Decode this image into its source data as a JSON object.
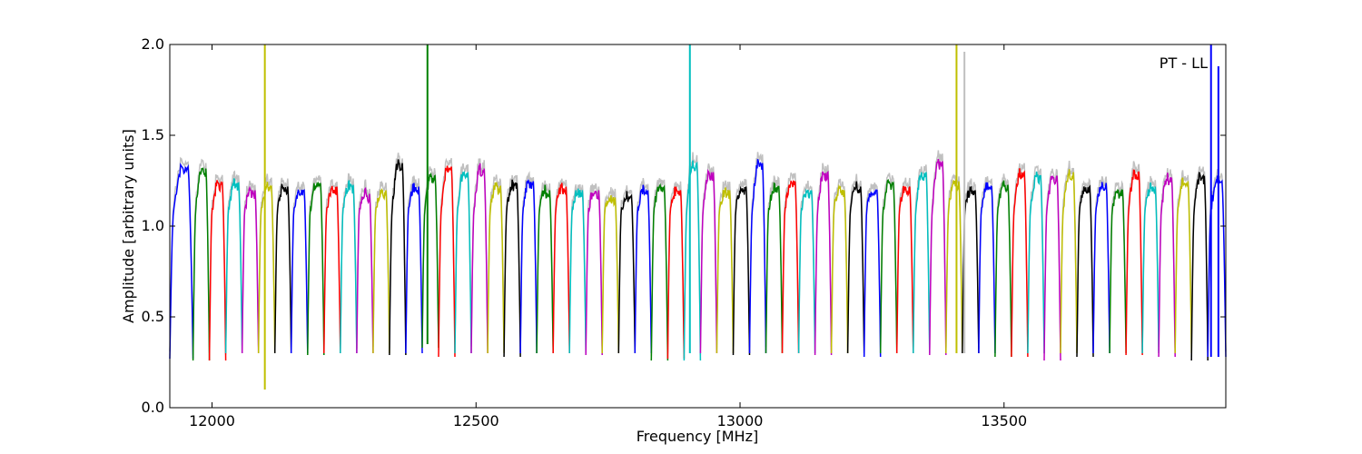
{
  "chart_data": {
    "type": "line",
    "title": "",
    "annotation": "PT - LL",
    "xlabel": "Frequency [MHz]",
    "ylabel": "Amplitude [arbitrary units]",
    "xlim": [
      11920,
      13920
    ],
    "ylim": [
      0,
      2.0
    ],
    "xticks": [
      12000,
      12500,
      13000,
      13500
    ],
    "yticks": [
      0.0,
      0.5,
      1.0,
      1.5,
      2.0
    ],
    "xtick_labels": [
      "12000",
      "12500",
      "13000",
      "13500"
    ],
    "ytick_labels": [
      "0.0",
      "0.5",
      "1.0",
      "1.5",
      "2.0"
    ],
    "grid": false,
    "background_trace_color": "#c0c0c0",
    "channel_colors": [
      "#0000ff",
      "#008000",
      "#ff0000",
      "#00bfbf",
      "#bf00bf",
      "#bfbf00",
      "#000000"
    ],
    "channel_starts_mhz": [
      11920,
      11964,
      11995,
      12026,
      12057,
      12088,
      12119,
      12150,
      12181,
      12212,
      12243,
      12274,
      12305,
      12336,
      12367,
      12398,
      12429,
      12460,
      12491,
      12522,
      12553,
      12584,
      12615,
      12646,
      12677,
      12708,
      12739,
      12770,
      12801,
      12832,
      12863,
      12894,
      12925,
      12956,
      12987,
      13018,
      13049,
      13080,
      13111,
      13142,
      13173,
      13204,
      13235,
      13266,
      13297,
      13328,
      13359,
      13390,
      13421,
      13452,
      13483,
      13514,
      13545,
      13576,
      13607,
      13638,
      13669,
      13700,
      13731,
      13762,
      13793,
      13824,
      13855,
      13886
    ],
    "channel_peaks": [
      1.33,
      1.32,
      1.24,
      1.24,
      1.2,
      1.22,
      1.22,
      1.2,
      1.24,
      1.22,
      1.23,
      1.18,
      1.2,
      1.35,
      1.22,
      1.28,
      1.33,
      1.3,
      1.32,
      1.22,
      1.24,
      1.25,
      1.2,
      1.22,
      1.2,
      1.2,
      1.16,
      1.17,
      1.2,
      1.22,
      1.2,
      1.35,
      1.3,
      1.2,
      1.22,
      1.35,
      1.22,
      1.25,
      1.2,
      1.3,
      1.2,
      1.22,
      1.2,
      1.24,
      1.22,
      1.3,
      1.36,
      1.25,
      1.2,
      1.22,
      1.23,
      1.3,
      1.28,
      1.28,
      1.3,
      1.22,
      1.24,
      1.2,
      1.3,
      1.22,
      1.27,
      1.25,
      1.28,
      1.25
    ],
    "channel_dips": [
      0.27,
      0.26,
      0.26,
      0.3,
      0.3,
      0.3,
      0.3,
      0.3,
      0.29,
      0.3,
      0.3,
      0.3,
      0.3,
      0.29,
      0.3,
      0.33,
      0.28,
      0.3,
      0.3,
      0.3,
      0.28,
      0.3,
      0.3,
      0.3,
      0.3,
      0.29,
      0.3,
      0.3,
      0.3,
      0.26,
      0.27,
      0.26,
      0.3,
      0.3,
      0.29,
      0.3,
      0.3,
      0.3,
      0.3,
      0.29,
      0.3,
      0.3,
      0.28,
      0.3,
      0.3,
      0.3,
      0.29,
      0.3,
      0.3,
      0.3,
      0.28,
      0.28,
      0.3,
      0.26,
      0.3,
      0.28,
      0.3,
      0.3,
      0.29,
      0.3,
      0.28,
      0.3,
      0.26,
      0.28
    ],
    "spikes": [
      {
        "x_mhz": 12100,
        "y_top": 2.0,
        "y_bottom": 0.1,
        "color": "#bfbf00"
      },
      {
        "x_mhz": 12408,
        "y_top": 2.0,
        "y_bottom": 0.35,
        "color": "#008000"
      },
      {
        "x_mhz": 12905,
        "y_top": 2.0,
        "y_bottom": 0.3,
        "color": "#00bfbf"
      },
      {
        "x_mhz": 13410,
        "y_top": 2.0,
        "y_bottom": 0.3,
        "color": "#bfbf00"
      },
      {
        "x_mhz": 13425,
        "y_top": 1.96,
        "y_bottom": 0.3,
        "color": "#c0c0c0"
      },
      {
        "x_mhz": 13892,
        "y_top": 2.0,
        "y_bottom": 0.28,
        "color": "#0000ff"
      },
      {
        "x_mhz": 13906,
        "y_top": 1.88,
        "y_bottom": 0.28,
        "color": "#0000ff"
      }
    ]
  }
}
